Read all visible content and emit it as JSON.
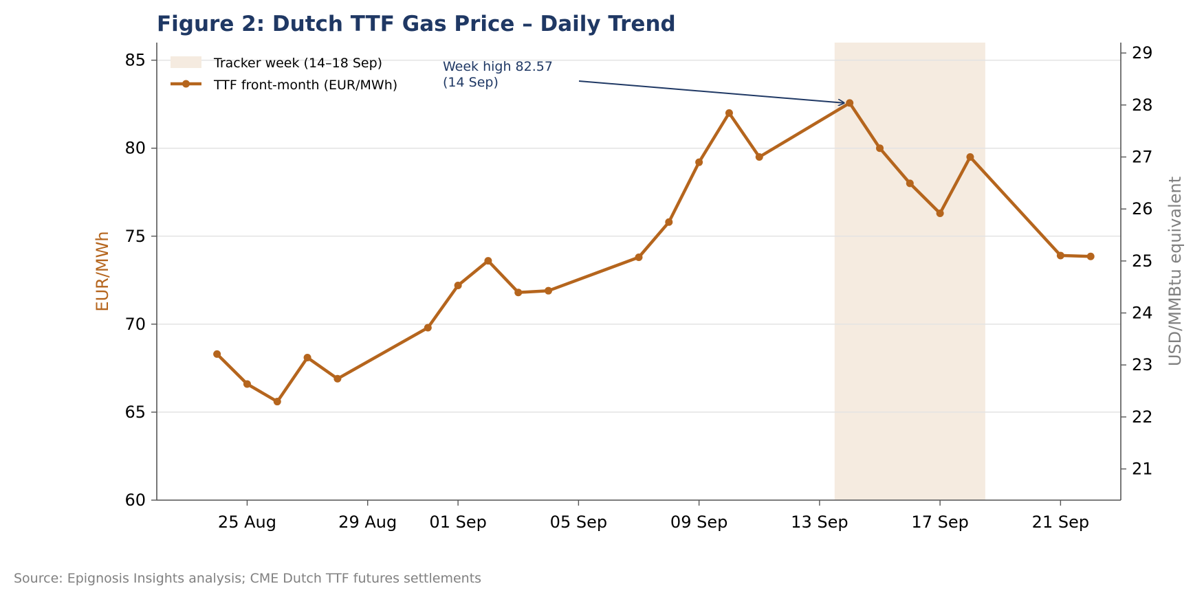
{
  "chart_data": {
    "type": "line",
    "title": "Figure 2: Dutch TTF Gas Price – Daily Trend",
    "ylabel": "EUR/MWh",
    "y2label": "USD/MMBtu equivalent",
    "ylim": [
      60,
      86
    ],
    "y2lim": [
      20.4,
      29.2
    ],
    "yticks": [
      60,
      65,
      70,
      75,
      80,
      85
    ],
    "y2ticks": [
      21,
      22,
      23,
      24,
      25,
      26,
      27,
      28,
      29
    ],
    "x_range": [
      "2025-08-22",
      "2025-09-23"
    ],
    "xticks": [
      {
        "date": "2025-08-25",
        "label": "25 Aug"
      },
      {
        "date": "2025-08-29",
        "label": "29 Aug"
      },
      {
        "date": "2025-09-01",
        "label": "01 Sep"
      },
      {
        "date": "2025-09-05",
        "label": "05 Sep"
      },
      {
        "date": "2025-09-09",
        "label": "09 Sep"
      },
      {
        "date": "2025-09-13",
        "label": "13 Sep"
      },
      {
        "date": "2025-09-17",
        "label": "17 Sep"
      },
      {
        "date": "2025-09-21",
        "label": "21 Sep"
      }
    ],
    "grid": "horizontal",
    "legend_position": "top-left",
    "highlight": {
      "label": "Tracker week (14–18 Sep)",
      "start": "2025-09-13T12:00",
      "end": "2025-09-18T12:00",
      "color": "#f5ebe0"
    },
    "series": [
      {
        "name": "TTF front-month (EUR/MWh)",
        "color": "#b5651d",
        "points": [
          {
            "x": "2025-08-24",
            "y": 68.3
          },
          {
            "x": "2025-08-25",
            "y": 66.6
          },
          {
            "x": "2025-08-26",
            "y": 65.6
          },
          {
            "x": "2025-08-27",
            "y": 68.1
          },
          {
            "x": "2025-08-28",
            "y": 66.9
          },
          {
            "x": "2025-08-31",
            "y": 69.8
          },
          {
            "x": "2025-09-01",
            "y": 72.2
          },
          {
            "x": "2025-09-02",
            "y": 73.6
          },
          {
            "x": "2025-09-03",
            "y": 71.8
          },
          {
            "x": "2025-09-04",
            "y": 71.9
          },
          {
            "x": "2025-09-07",
            "y": 73.8
          },
          {
            "x": "2025-09-08",
            "y": 75.8
          },
          {
            "x": "2025-09-09",
            "y": 79.2
          },
          {
            "x": "2025-09-10",
            "y": 82.0
          },
          {
            "x": "2025-09-11",
            "y": 79.5
          },
          {
            "x": "2025-09-14",
            "y": 82.57
          },
          {
            "x": "2025-09-15",
            "y": 80.0
          },
          {
            "x": "2025-09-16",
            "y": 78.0
          },
          {
            "x": "2025-09-17",
            "y": 76.3
          },
          {
            "x": "2025-09-18",
            "y": 79.5
          },
          {
            "x": "2025-09-21",
            "y": 73.9
          },
          {
            "x": "2025-09-22",
            "y": 73.85
          }
        ]
      }
    ],
    "annotation": {
      "lines": [
        "Week high 82.57",
        "(14 Sep)"
      ],
      "target": {
        "x": "2025-09-14",
        "y": 82.57
      },
      "color": "#1f3864"
    }
  },
  "colors": {
    "title": "#1f3864",
    "left_axis_label": "#b5651d",
    "right_axis_label": "#808080",
    "axis": "#555555",
    "grid": "#e3e3e3",
    "source": "#808080"
  },
  "source_text": "Source: Epignosis Insights analysis; CME Dutch TTF futures settlements"
}
